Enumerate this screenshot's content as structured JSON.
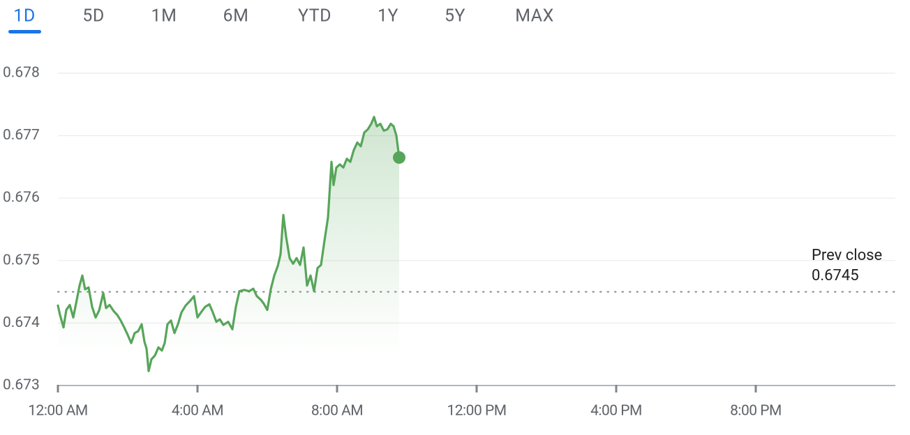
{
  "tabs": [
    "1D",
    "5D",
    "1M",
    "6M",
    "YTD",
    "1Y",
    "5Y",
    "MAX"
  ],
  "selected_tab": 0,
  "chart_data": {
    "type": "line",
    "x": [
      0,
      0.06,
      0.16,
      0.24,
      0.34,
      0.44,
      0.54,
      0.62,
      0.7,
      0.78,
      0.88,
      0.98,
      1.08,
      1.18,
      1.3,
      1.38,
      1.48,
      1.6,
      1.7,
      1.8,
      1.9,
      2.0,
      2.1,
      2.2,
      2.3,
      2.4,
      2.48,
      2.54,
      2.6,
      2.68,
      2.78,
      2.88,
      2.98,
      3.06,
      3.14,
      3.24,
      3.34,
      3.44,
      3.54,
      3.66,
      3.78,
      3.9,
      4.0,
      4.1,
      4.22,
      4.34,
      4.44,
      4.54,
      4.64,
      4.74,
      4.88,
      5.0,
      5.1,
      5.2,
      5.34,
      5.48,
      5.6,
      5.7,
      5.82,
      5.9,
      6.0,
      6.1,
      6.2,
      6.3,
      6.38,
      6.46,
      6.54,
      6.64,
      6.74,
      6.84,
      6.94,
      7.04,
      7.14,
      7.24,
      7.34,
      7.44,
      7.54,
      7.64,
      7.74,
      7.84,
      7.9,
      7.98,
      8.08,
      8.18,
      8.28,
      8.38,
      8.48,
      8.58,
      8.68,
      8.78,
      8.88,
      8.98,
      9.06,
      9.14,
      9.24,
      9.34,
      9.44,
      9.54,
      9.62,
      9.7,
      9.78
    ],
    "series": [
      {
        "color": "#57a55a",
        "values": [
          0.67428,
          0.67413,
          0.67393,
          0.67421,
          0.67429,
          0.67409,
          0.67437,
          0.6746,
          0.67476,
          0.67454,
          0.67457,
          0.67426,
          0.67409,
          0.6742,
          0.67448,
          0.67424,
          0.67429,
          0.67419,
          0.67413,
          0.67404,
          0.67393,
          0.67381,
          0.67368,
          0.67384,
          0.67387,
          0.67398,
          0.6737,
          0.67359,
          0.67323,
          0.67342,
          0.67348,
          0.67361,
          0.67356,
          0.67368,
          0.67398,
          0.67404,
          0.67384,
          0.67398,
          0.67417,
          0.67428,
          0.67435,
          0.67443,
          0.67409,
          0.67417,
          0.67426,
          0.6743,
          0.67417,
          0.67402,
          0.67406,
          0.67397,
          0.67402,
          0.6739,
          0.67426,
          0.67451,
          0.67453,
          0.67451,
          0.67455,
          0.67443,
          0.67437,
          0.67431,
          0.67421,
          0.67454,
          0.67476,
          0.67491,
          0.6751,
          0.67573,
          0.67538,
          0.67504,
          0.67495,
          0.67504,
          0.67493,
          0.67521,
          0.6746,
          0.67476,
          0.67451,
          0.67488,
          0.67493,
          0.67532,
          0.67569,
          0.67658,
          0.67621,
          0.67649,
          0.67654,
          0.67649,
          0.67663,
          0.67658,
          0.67677,
          0.67689,
          0.67683,
          0.67705,
          0.6771,
          0.67719,
          0.6773,
          0.67715,
          0.67719,
          0.67708,
          0.6771,
          0.67719,
          0.67715,
          0.677,
          0.67665
        ]
      }
    ],
    "xlim": [
      0,
      24
    ],
    "xticks": [
      {
        "value": 0,
        "label": "12:00 AM"
      },
      {
        "value": 4,
        "label": "4:00 AM"
      },
      {
        "value": 8,
        "label": "8:00 AM"
      },
      {
        "value": 12,
        "label": "12:00 PM"
      },
      {
        "value": 16,
        "label": "4:00 PM"
      },
      {
        "value": 20,
        "label": "8:00 PM"
      }
    ],
    "ylim": [
      0.673,
      0.678
    ],
    "yticks": [
      0.673,
      0.674,
      0.675,
      0.676,
      0.677,
      0.678
    ],
    "grid": true,
    "prev_close_label": "Prev close",
    "prev_close": 0.6745
  }
}
